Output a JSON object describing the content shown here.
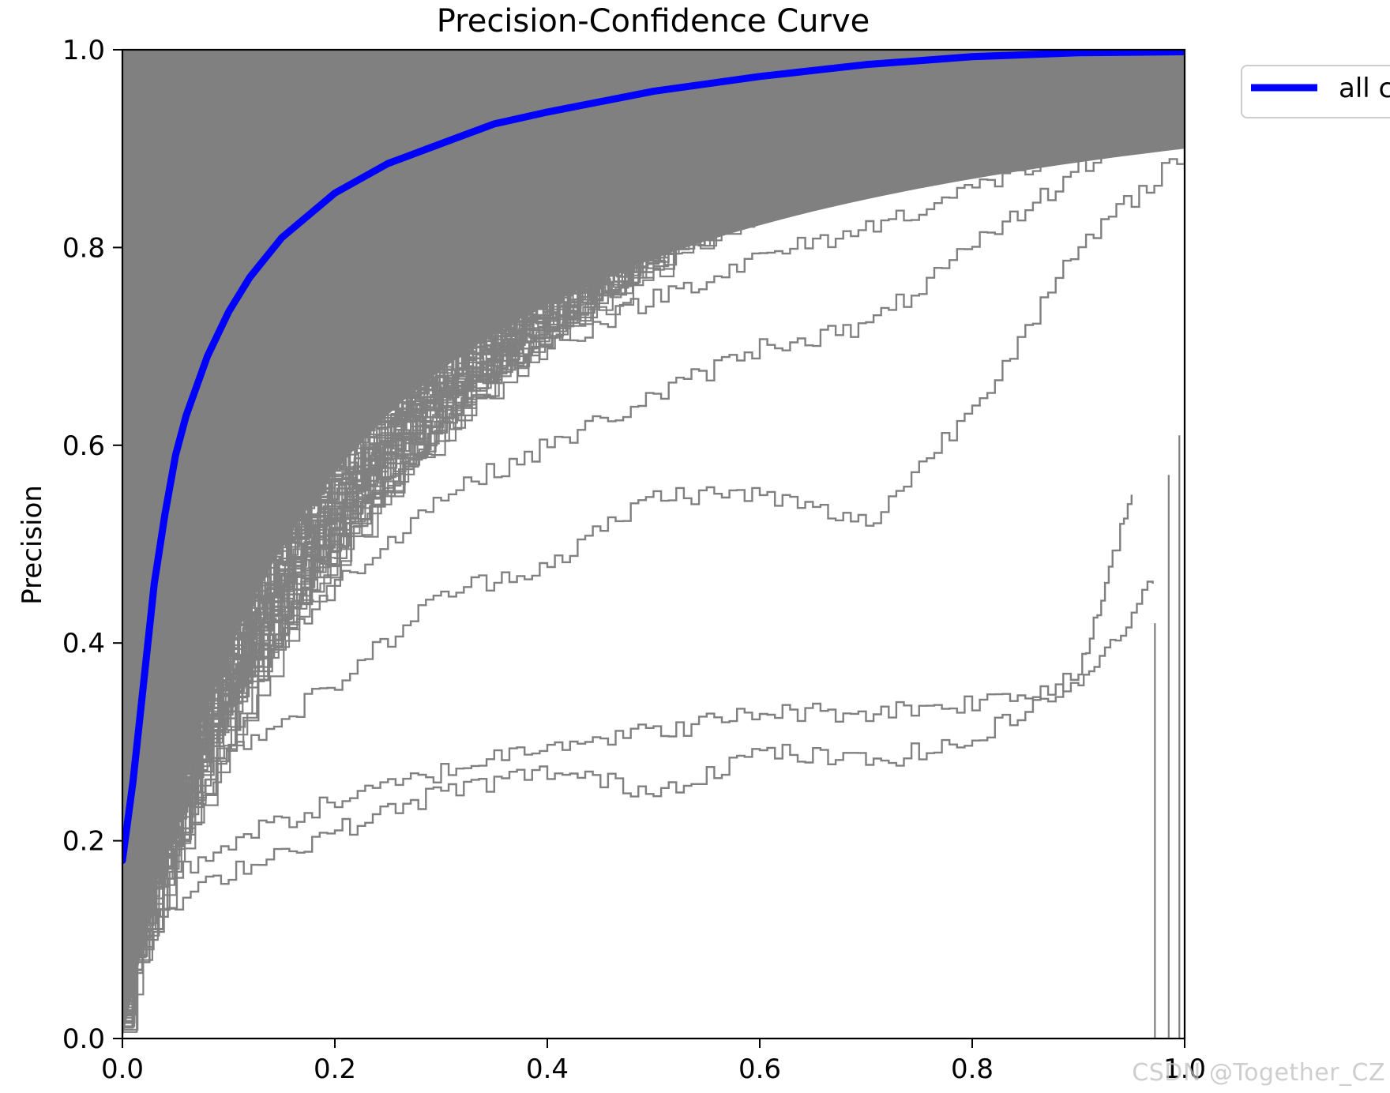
{
  "chart_data": {
    "type": "line",
    "title": "Precision-Confidence Curve",
    "xlabel": "",
    "ylabel": "Precision",
    "xlim": [
      0,
      1
    ],
    "ylim": [
      0,
      1
    ],
    "x_ticks": [
      "0.0",
      "0.2",
      "0.4",
      "0.6",
      "0.8",
      "1.0"
    ],
    "y_ticks": [
      "0.0",
      "0.2",
      "0.4",
      "0.6",
      "0.8",
      "1.0"
    ],
    "grid": false,
    "legend": {
      "placement": "outside upper-right",
      "entries": [
        "all c"
      ]
    },
    "colors": {
      "class_curves": "#808080",
      "aggregate": "#0000ff",
      "axes": "#000000"
    },
    "series": [
      {
        "name": "all c",
        "color": "#0000ff",
        "x": [
          0.0,
          0.01,
          0.02,
          0.03,
          0.04,
          0.05,
          0.06,
          0.08,
          0.1,
          0.12,
          0.15,
          0.2,
          0.25,
          0.3,
          0.35,
          0.4,
          0.5,
          0.6,
          0.7,
          0.8,
          0.9,
          1.0
        ],
        "y": [
          0.18,
          0.26,
          0.36,
          0.46,
          0.53,
          0.59,
          0.63,
          0.69,
          0.735,
          0.77,
          0.81,
          0.855,
          0.885,
          0.905,
          0.925,
          0.937,
          0.958,
          0.973,
          0.985,
          0.993,
          0.997,
          0.998
        ]
      }
    ],
    "class_curves_sample": [
      {
        "x": [
          0.0,
          0.1,
          0.2,
          0.3,
          0.4,
          0.5,
          0.6,
          0.7,
          0.8,
          0.9,
          0.97
        ],
        "y": [
          0.13,
          0.2,
          0.24,
          0.27,
          0.3,
          0.31,
          0.33,
          0.33,
          0.34,
          0.36,
          0.46
        ]
      },
      {
        "x": [
          0.0,
          0.1,
          0.2,
          0.3,
          0.4,
          0.5,
          0.6,
          0.7,
          0.8,
          0.9,
          0.95
        ],
        "y": [
          0.1,
          0.17,
          0.21,
          0.25,
          0.27,
          0.25,
          0.29,
          0.28,
          0.3,
          0.37,
          0.55
        ]
      },
      {
        "x": [
          0.0,
          0.1,
          0.2,
          0.3,
          0.4,
          0.5,
          0.6,
          0.7,
          0.8,
          0.9,
          1.0
        ],
        "y": [
          0.12,
          0.29,
          0.36,
          0.45,
          0.48,
          0.55,
          0.55,
          0.52,
          0.64,
          0.8,
          0.9
        ]
      },
      {
        "x": [
          0.0,
          0.1,
          0.2,
          0.3,
          0.4,
          0.5,
          0.6,
          0.7,
          0.8,
          0.9,
          1.0
        ],
        "y": [
          0.15,
          0.35,
          0.46,
          0.55,
          0.6,
          0.65,
          0.7,
          0.72,
          0.8,
          0.88,
          0.97
        ]
      },
      {
        "x": [
          0.0,
          0.1,
          0.2,
          0.3,
          0.4,
          0.5,
          0.6,
          0.7,
          0.8,
          0.9,
          1.0
        ],
        "y": [
          0.18,
          0.45,
          0.57,
          0.65,
          0.7,
          0.75,
          0.79,
          0.82,
          0.86,
          0.9,
          0.96
        ]
      }
    ]
  },
  "watermark": "CSDN @Together_CZ"
}
